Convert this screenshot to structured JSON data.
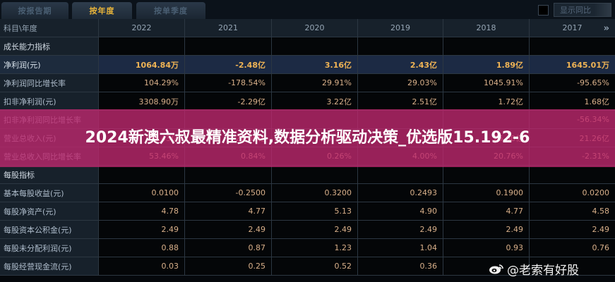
{
  "tabs": [
    {
      "label": "按报告期",
      "active": false
    },
    {
      "label": "按年度",
      "active": true
    },
    {
      "label": "按单季度",
      "active": false
    }
  ],
  "yoy_toggle": {
    "label": "显示同比",
    "checked": false
  },
  "table": {
    "header_label": "科目\\年度",
    "years": [
      "2022",
      "2021",
      "2020",
      "2019",
      "2018",
      "2017"
    ],
    "more_icon": "»",
    "rows": [
      {
        "label": "成长能力指标",
        "type": "section",
        "values": [
          "",
          "",
          "",
          "",
          "",
          ""
        ]
      },
      {
        "label": "净利润(元)",
        "type": "highlight",
        "values": [
          "1064.84万",
          "-2.48亿",
          "3.16亿",
          "2.43亿",
          "1.89亿",
          "1645.01万"
        ]
      },
      {
        "label": "净利润同比增长率",
        "type": "normal",
        "values": [
          "104.29%",
          "-178.54%",
          "29.91%",
          "29.03%",
          "1045.91%",
          "-95.65%"
        ]
      },
      {
        "label": "扣非净利润(元)",
        "type": "normal",
        "values": [
          "3308.90万",
          "-2.29亿",
          "3.22亿",
          "2.51亿",
          "1.72亿",
          "1.68亿"
        ]
      },
      {
        "label": "扣非净利润同比增长率",
        "type": "normal",
        "values": [
          "",
          "",
          "",
          "",
          "",
          "-56.34%"
        ]
      },
      {
        "label": "营业总收入(元)",
        "type": "normal",
        "values": [
          "41.43亿",
          "27.00亿",
          "26.77亿",
          "26.70亿",
          "25.68亿",
          "21.26亿"
        ]
      },
      {
        "label": "营业总收入同比增长率",
        "type": "normal",
        "values": [
          "53.46%",
          "0.84%",
          "0.26%",
          "4.00%",
          "20.76%",
          "-2.31%"
        ]
      },
      {
        "label": "每股指标",
        "type": "section",
        "values": [
          "",
          "",
          "",
          "",
          "",
          ""
        ]
      },
      {
        "label": "基本每股收益(元)",
        "type": "normal",
        "values": [
          "0.0100",
          "-0.2500",
          "0.3200",
          "0.2493",
          "0.1900",
          "0.0200"
        ]
      },
      {
        "label": "每股净资产(元)",
        "type": "normal",
        "values": [
          "4.78",
          "4.77",
          "5.13",
          "4.90",
          "4.77",
          "4.58"
        ]
      },
      {
        "label": "每股资本公积金(元)",
        "type": "normal",
        "values": [
          "2.49",
          "2.49",
          "2.49",
          "2.49",
          "2.49",
          "2.49"
        ]
      },
      {
        "label": "每股未分配利润(元)",
        "type": "normal",
        "values": [
          "0.88",
          "0.87",
          "1.23",
          "1.04",
          "0.93",
          "0.76"
        ]
      },
      {
        "label": "每股经营现金流(元)",
        "type": "normal",
        "values": [
          "0.03",
          "0.25",
          "0.52",
          "0.36",
          "",
          ""
        ]
      }
    ]
  },
  "banner": {
    "text": "2024新澳六叔最精准资料,数据分析驱动决策_优选版15.192-6"
  },
  "watermark": {
    "icon": "weibo-icon",
    "text": "@老索有好股"
  },
  "colors": {
    "highlight_value": "#f0b455",
    "active_tab": "#e8b43a",
    "banner": "#be286e"
  }
}
